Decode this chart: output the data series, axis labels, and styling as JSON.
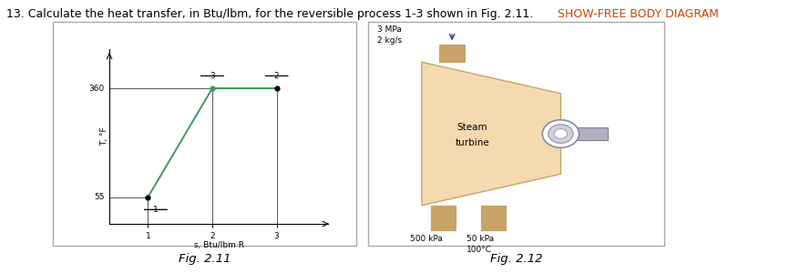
{
  "title": "13. Calculate the heat transfer, in Btu/lbm, for the reversible process 1-3 shown in Fig. 2.11.",
  "title_highlight": "SHOW-FREE BODY DIAGRAM",
  "fig211_caption": "Fig. 2.11",
  "fig212_caption": "Fig. 2.12",
  "graph": {
    "xlabel": "s, Btu/lbm·R",
    "ylabel": "T, °F",
    "xlim": [
      0.4,
      3.8
    ],
    "ylim": [
      -20,
      470
    ],
    "xticks": [
      1,
      2,
      3
    ],
    "ytick_vals": [
      55,
      360
    ],
    "ytick_labels": [
      "55",
      "360"
    ],
    "point1": [
      1,
      55
    ],
    "point3": [
      2,
      360
    ],
    "point2": [
      3,
      360
    ],
    "line_color": "#3a9a60",
    "ref_line_color": "#555555"
  },
  "turbine": {
    "inlet_label1": "3 MPa",
    "inlet_label2": "2 kg/s",
    "outlet1_label": "500 kPa",
    "outlet2_label1": "50 kPa",
    "outlet2_label2": "100°C",
    "body_color": "#f5d9b0",
    "pipe_color": "#c8a468",
    "shaft_bar_color": "#b0b0c0",
    "shaft_ring_outer": "#d0d0e0",
    "shaft_ring_inner": "#e8e8f0",
    "border_color": "#c8a468",
    "label_line1": "Steam",
    "label_line2": "turbine"
  },
  "background_color": "#ffffff",
  "panel_bg": "#f8f8f8",
  "title_fontsize": 9.0,
  "highlight_color": "#cc4400",
  "fig_label_fontsize": 9.5
}
